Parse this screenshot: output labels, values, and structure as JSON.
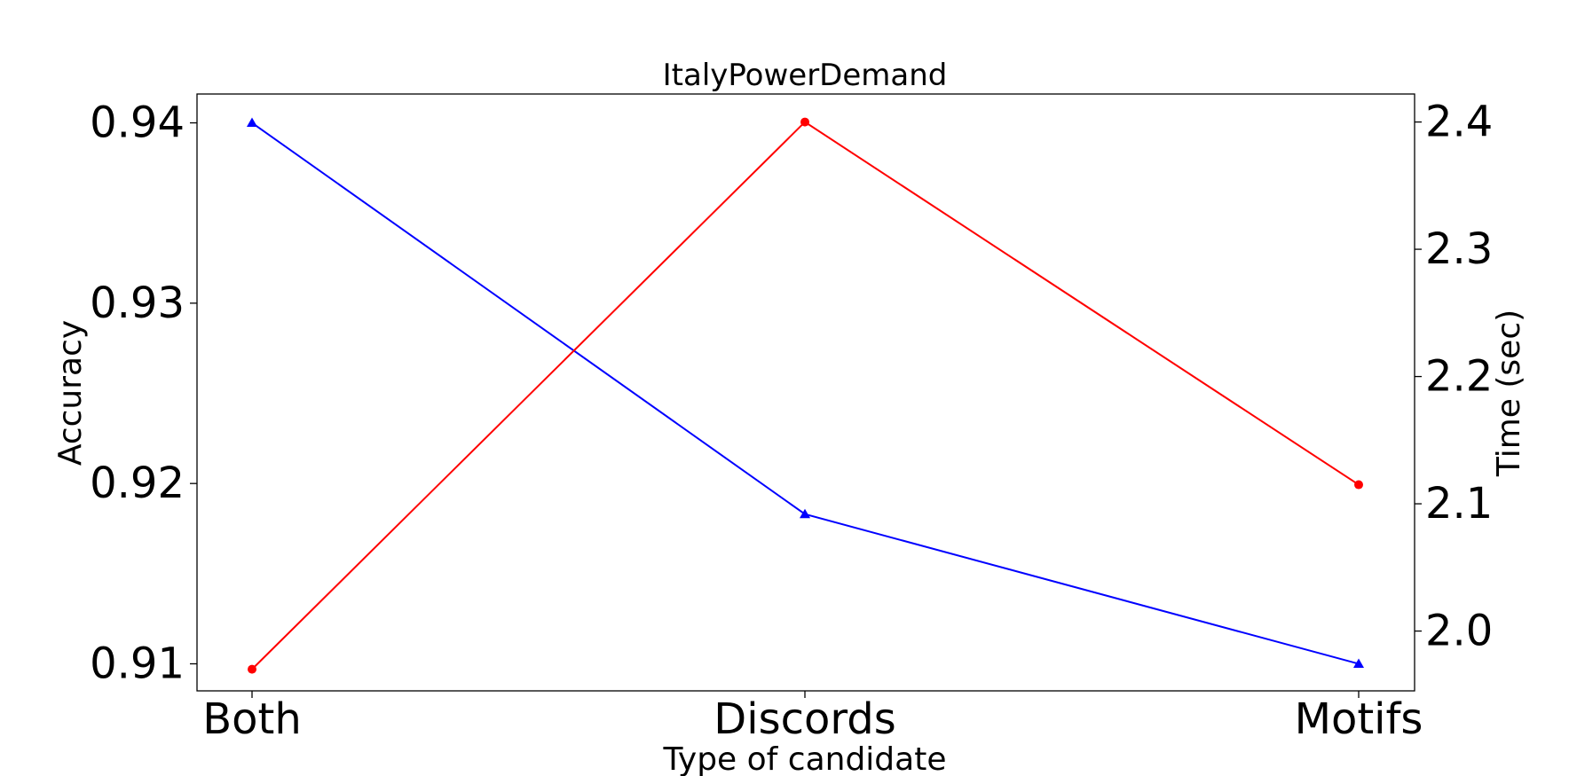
{
  "chart_data": {
    "type": "line",
    "title": "ItalyPowerDemand",
    "xlabel": "Type of candidate",
    "ylabel_left": "Accuracy",
    "ylabel_right": "Time (sec)",
    "categories": [
      "Both",
      "Discords",
      "Motifs"
    ],
    "left_axis": {
      "ticks": [
        0.91,
        0.92,
        0.93,
        0.94
      ],
      "tick_labels": [
        "0.91",
        "0.92",
        "0.93",
        "0.94"
      ],
      "ylim": [
        0.9085,
        0.9416
      ]
    },
    "right_axis": {
      "ticks": [
        2.0,
        2.1,
        2.2,
        2.3,
        2.4
      ],
      "tick_labels": [
        "2.0",
        "2.1",
        "2.2",
        "2.3",
        "2.4"
      ],
      "ylim": [
        1.953,
        2.422
      ]
    },
    "series": [
      {
        "axis": "left",
        "color": "#0000ff",
        "marker": "triangle",
        "values": [
          0.94,
          0.9183,
          0.91
        ]
      },
      {
        "axis": "right",
        "color": "#ff0000",
        "marker": "circle",
        "values": [
          1.97,
          2.4,
          2.115
        ]
      }
    ],
    "grid": false,
    "legend": "none"
  }
}
